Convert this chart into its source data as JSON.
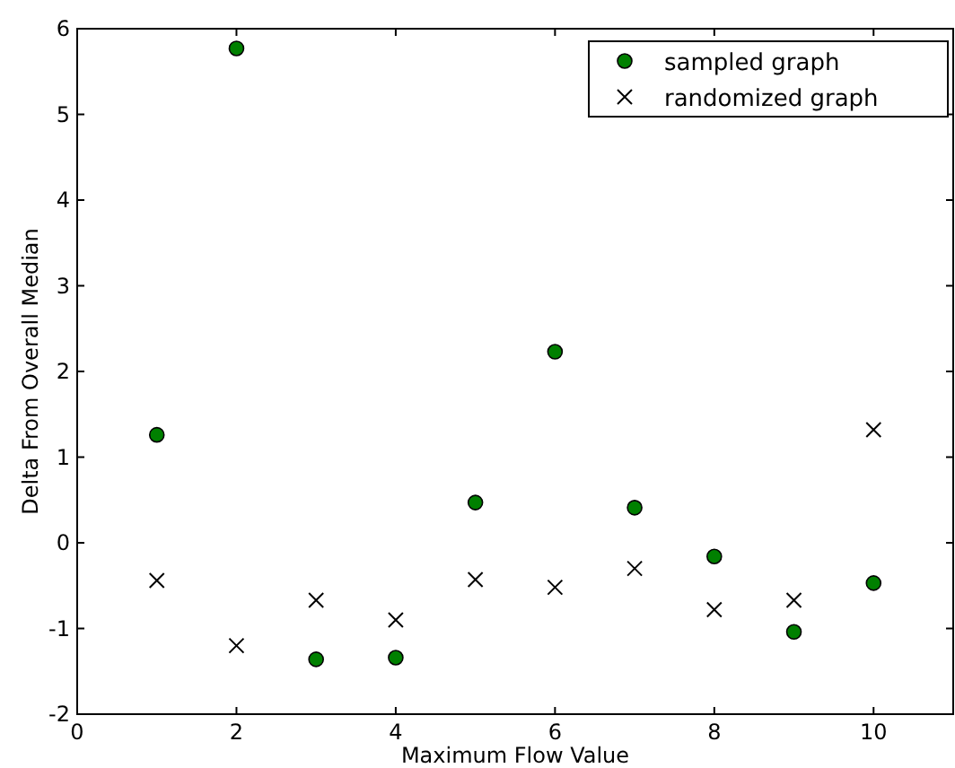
{
  "chart_data": {
    "type": "scatter",
    "xlabel": "Maximum Flow Value",
    "ylabel": "Delta From Overall Median",
    "xlim": [
      0,
      11
    ],
    "xticks": [
      0,
      2,
      4,
      6,
      8,
      10
    ],
    "ylim": [
      -2,
      6
    ],
    "yticks": [
      -2,
      -1,
      0,
      1,
      2,
      3,
      4,
      5,
      6
    ],
    "x": [
      1,
      2,
      3,
      4,
      5,
      6,
      7,
      8,
      9,
      10
    ],
    "grid": false,
    "legend": "top right",
    "series": [
      {
        "name": "sampled graph",
        "color": "#008000",
        "marker": "circle",
        "values": [
          1.26,
          5.77,
          -1.36,
          -1.34,
          0.47,
          2.23,
          0.41,
          -0.16,
          -1.04,
          -0.47
        ]
      },
      {
        "name": "randomized graph",
        "color": "#000000",
        "marker": "cross",
        "values": [
          -0.44,
          -1.2,
          -0.67,
          -0.9,
          -0.43,
          -0.52,
          -0.3,
          -0.78,
          -0.67,
          1.32
        ]
      }
    ]
  }
}
